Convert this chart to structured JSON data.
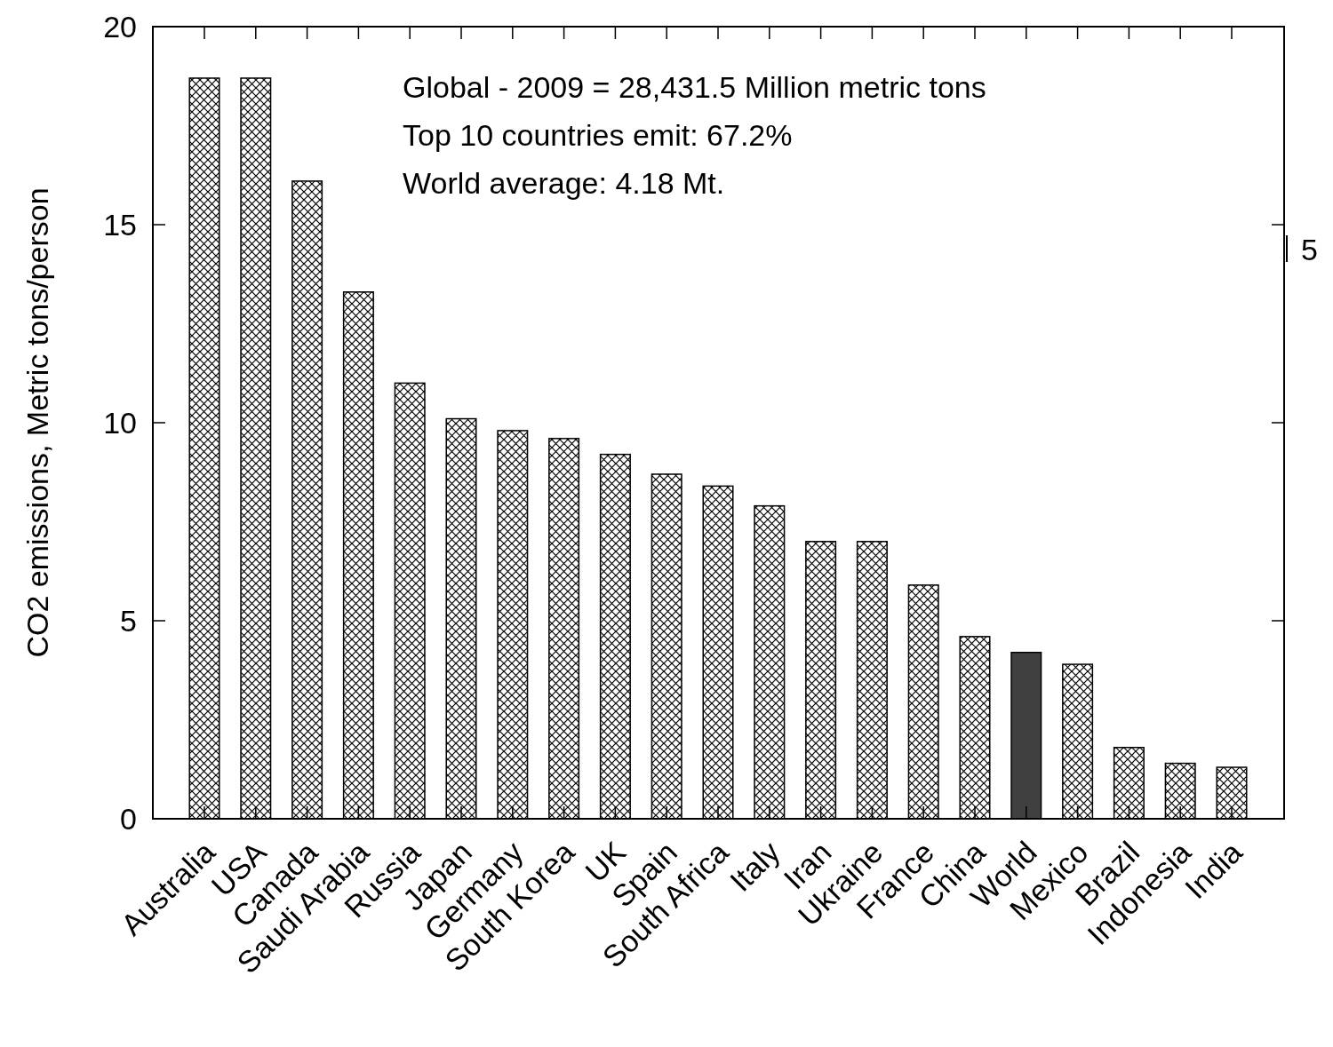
{
  "chart_data": {
    "type": "bar",
    "ylabel": "CO2 emissions, Metric tons/person",
    "categories": [
      "Australia",
      "USA",
      "Canada",
      "Saudi Arabia",
      "Russia",
      "Japan",
      "Germany",
      "South Korea",
      "UK",
      "Spain",
      "South Africa",
      "Italy",
      "Iran",
      "Ukraine",
      "France",
      "China",
      "World",
      "Mexico",
      "Brazil",
      "Indonesia",
      "India"
    ],
    "values": [
      18.7,
      18.7,
      16.1,
      13.3,
      11.0,
      10.1,
      9.8,
      9.6,
      9.2,
      8.7,
      8.4,
      7.9,
      7.0,
      7.0,
      5.9,
      4.6,
      4.2,
      3.9,
      1.8,
      1.4,
      1.3
    ],
    "colors": [
      "#000000",
      "#000000",
      "#000000",
      "#000000",
      "#000000",
      "#000000",
      "#000000",
      "#000000",
      "#000000",
      "#000000",
      "#000000",
      "#000000",
      "#000000",
      "#000000",
      "#000000",
      "#000000",
      "#404040",
      "#000000",
      "#000000",
      "#000000",
      "#000000"
    ],
    "ylim": [
      0,
      20
    ],
    "yticks": [
      0,
      5,
      10,
      15,
      20
    ],
    "grid": false,
    "annotations": [
      "Global - 2009 = 28,431.5 Million metric tons",
      "Top 10 countries emit: 67.2%",
      "World average: 4.18 Mt.",
      "5"
    ]
  }
}
